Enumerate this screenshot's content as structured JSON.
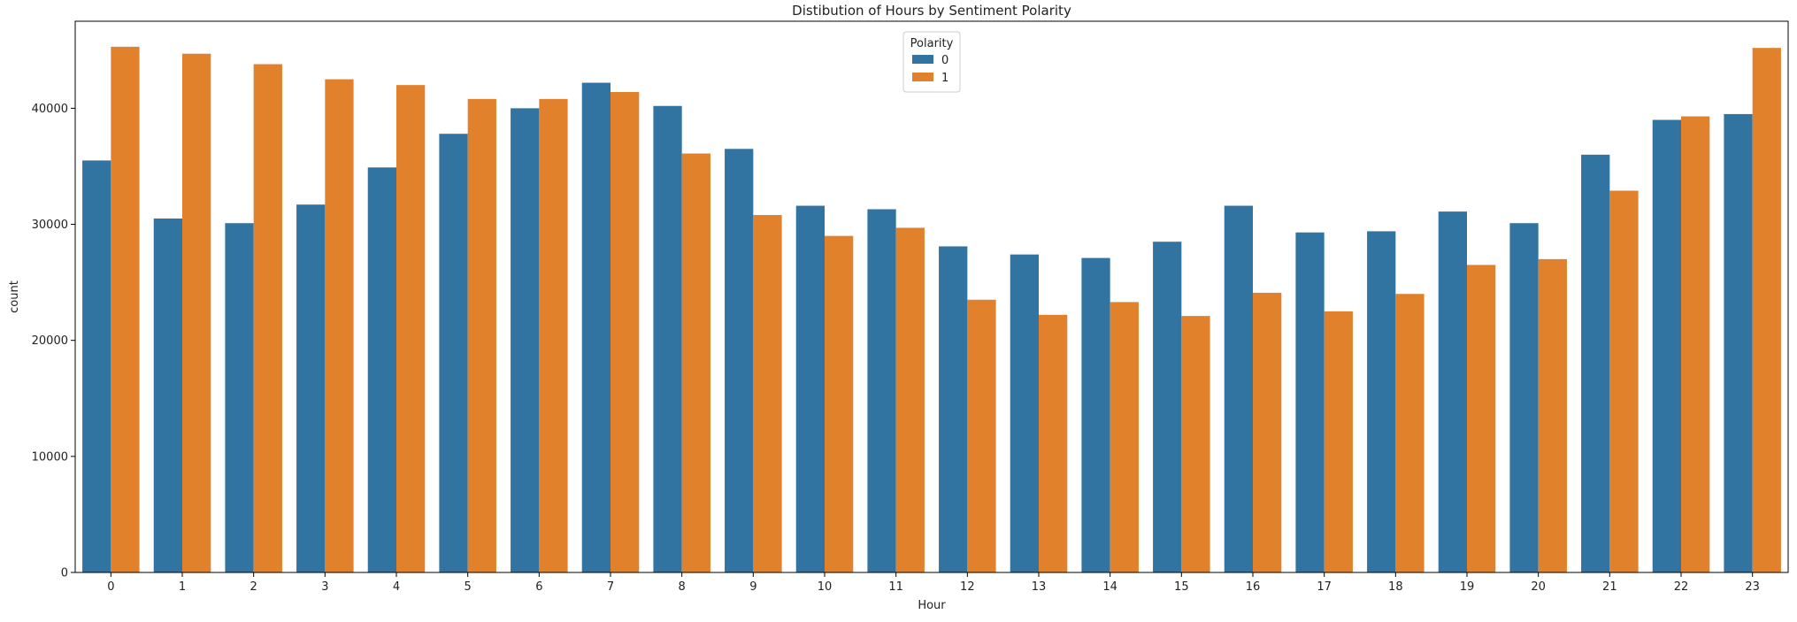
{
  "chart_data": {
    "type": "bar",
    "title": "Distibution of Hours by Sentiment Polarity",
    "xlabel": "Hour",
    "ylabel": "count",
    "categories": [
      "0",
      "1",
      "2",
      "3",
      "4",
      "5",
      "6",
      "7",
      "8",
      "9",
      "10",
      "11",
      "12",
      "13",
      "14",
      "15",
      "16",
      "17",
      "18",
      "19",
      "20",
      "21",
      "22",
      "23"
    ],
    "ylim": [
      0,
      47500
    ],
    "yticks": [
      0,
      10000,
      20000,
      30000,
      40000
    ],
    "legend": {
      "title": "Polarity",
      "placement": "top-center"
    },
    "grid": false,
    "series": [
      {
        "name": "0",
        "color": "#3274a1",
        "values": [
          35500,
          30500,
          30100,
          31700,
          34900,
          37800,
          40000,
          42200,
          40200,
          36500,
          31600,
          31300,
          28100,
          27400,
          27100,
          28500,
          31600,
          29300,
          29400,
          31100,
          30100,
          36000,
          39000,
          39500
        ]
      },
      {
        "name": "1",
        "color": "#e1812c",
        "values": [
          45300,
          44700,
          43800,
          42500,
          42000,
          40800,
          40800,
          41400,
          36100,
          30800,
          29000,
          29700,
          23500,
          22200,
          23300,
          22100,
          24100,
          22500,
          24000,
          26500,
          27000,
          32900,
          39300,
          45200
        ]
      }
    ]
  }
}
